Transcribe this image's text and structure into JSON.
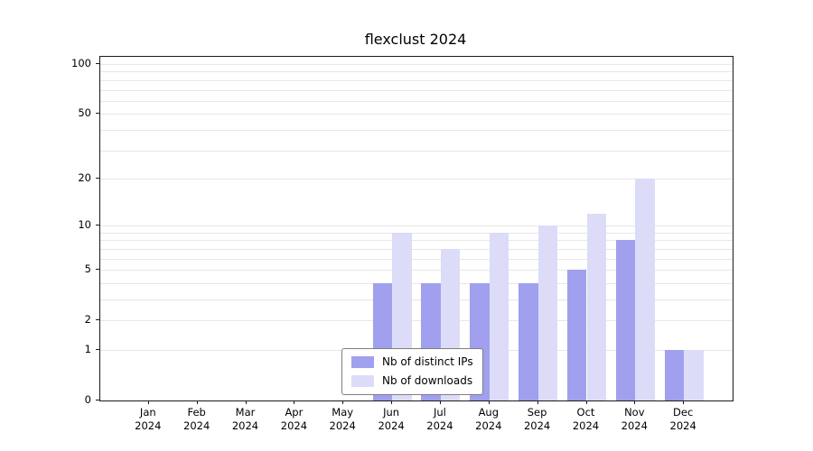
{
  "chart_data": {
    "type": "bar",
    "title": "flexclust 2024",
    "y_scale": "log1p",
    "grid": "on",
    "legend_position": "bottom-center-inside",
    "year": "2024",
    "months": [
      "Jan",
      "Feb",
      "Mar",
      "Apr",
      "May",
      "Jun",
      "Jul",
      "Aug",
      "Sep",
      "Oct",
      "Nov",
      "Dec"
    ],
    "categories": [
      "Jan 2024",
      "Feb 2024",
      "Mar 2024",
      "Apr 2024",
      "May 2024",
      "Jun 2024",
      "Jul 2024",
      "Aug 2024",
      "Sep 2024",
      "Oct 2024",
      "Nov 2024",
      "Dec 2024"
    ],
    "series": [
      {
        "name": "Nb of distinct IPs",
        "color": "#a0a0ee",
        "values": [
          0,
          0,
          0,
          0,
          0,
          4,
          4,
          4,
          4,
          5,
          8,
          1
        ]
      },
      {
        "name": "Nb of downloads",
        "color": "#dcdcf8",
        "values": [
          0,
          0,
          0,
          0,
          0,
          9,
          7,
          9,
          10,
          12,
          20,
          1
        ]
      }
    ],
    "y_ticks": [
      0,
      1,
      2,
      5,
      10,
      20,
      50,
      100
    ],
    "gridlines": [
      1,
      2,
      3,
      4,
      5,
      6,
      7,
      8,
      9,
      10,
      20,
      30,
      40,
      50,
      60,
      70,
      80,
      90,
      100
    ],
    "ylim": [
      0,
      115
    ],
    "colors": {
      "grid": "#e7e7e7",
      "axis": "#1a1a1a"
    }
  }
}
